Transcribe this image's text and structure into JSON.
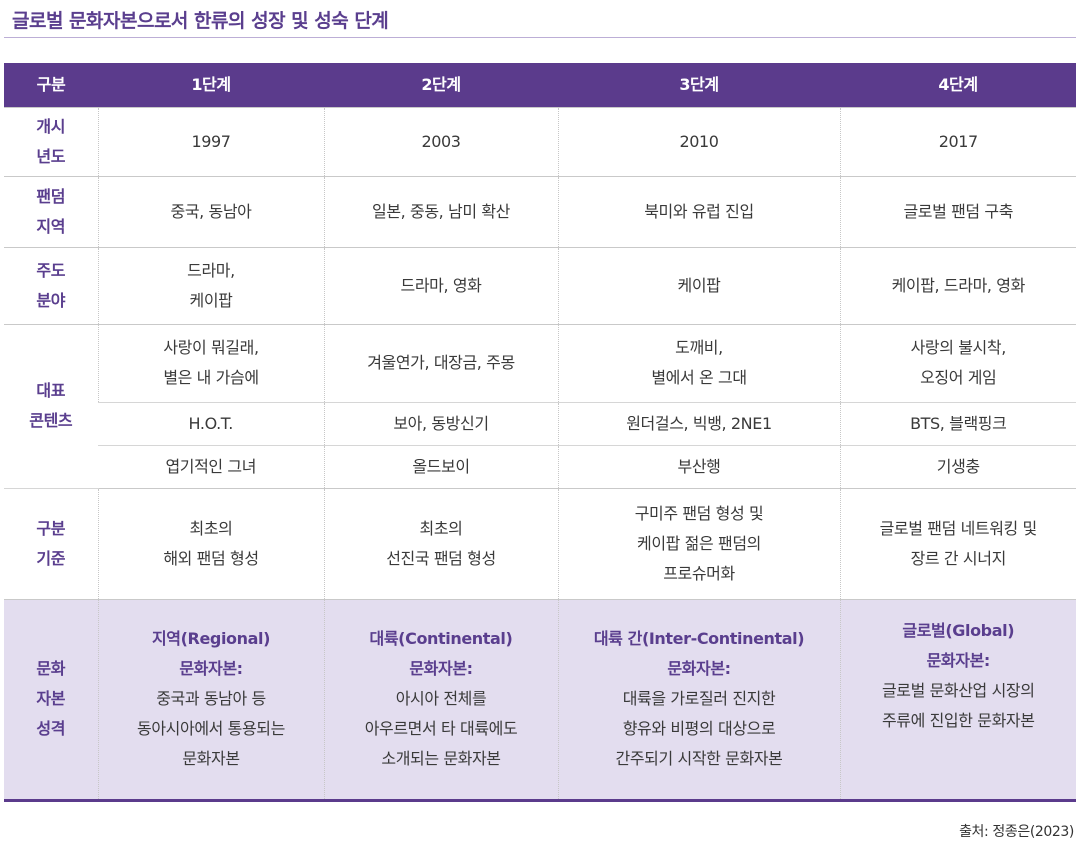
{
  "title": "글로벌 문화자본으로서 한류의 성장 및 성숙 단계",
  "header": [
    "구분",
    "1단계",
    "2단계",
    "3단계",
    "4단계"
  ],
  "rows": {
    "year": {
      "label": [
        "개시",
        "년도"
      ],
      "cells": [
        [
          "1997"
        ],
        [
          "2003"
        ],
        [
          "2010"
        ],
        [
          "2017"
        ]
      ]
    },
    "region": {
      "label": [
        "팬덤",
        "지역"
      ],
      "cells": [
        [
          "중국, 동남아"
        ],
        [
          "일본, 중동, 남미 확산"
        ],
        [
          "북미와 유럽 진입"
        ],
        [
          "글로벌 팬덤 구축"
        ]
      ]
    },
    "field": {
      "label": [
        "주도",
        "분야"
      ],
      "cells": [
        [
          "드라마,",
          "케이팝"
        ],
        [
          "드라마, 영화"
        ],
        [
          "케이팝"
        ],
        [
          "케이팝, 드라마, 영화"
        ]
      ]
    },
    "content": {
      "label": [
        "대표",
        "콘텐츠"
      ],
      "drama": [
        [
          "사랑이 뭐길래,",
          "별은 내 가슴에"
        ],
        [
          "겨울연가, 대장금, 주몽"
        ],
        [
          "도깨비,",
          "별에서 온 그대"
        ],
        [
          "사랑의 불시착,",
          "오징어 게임"
        ]
      ],
      "music": [
        [
          "H.O.T."
        ],
        [
          "보아, 동방신기"
        ],
        [
          "원더걸스, 빅뱅, 2NE1"
        ],
        [
          "BTS, 블랙핑크"
        ]
      ],
      "film": [
        [
          "엽기적인 그녀"
        ],
        [
          "올드보이"
        ],
        [
          "부산행"
        ],
        [
          "기생충"
        ]
      ]
    },
    "criteria": {
      "label": [
        "구분",
        "기준"
      ],
      "cells": [
        [
          "최초의",
          "해외 팬덤 형성"
        ],
        [
          "최초의",
          "선진국 팬덤 형성"
        ],
        [
          "구미주 팬덤 형성 및",
          "케이팝 젊은 팬덤의",
          "프로슈머화"
        ],
        [
          "글로벌 팬덤 네트워킹 및",
          "장르 간 시너지"
        ]
      ]
    },
    "character": {
      "label": [
        "문화",
        "자본",
        "성격"
      ],
      "cells": [
        {
          "head": [
            "지역(Regional)",
            "문화자본:"
          ],
          "body": [
            "중국과 동남아 등",
            "동아시아에서 통용되는",
            "문화자본"
          ]
        },
        {
          "head": [
            "대륙(Continental)",
            "문화자본:"
          ],
          "body": [
            "아시아 전체를",
            "아우르면서 타 대륙에도",
            "소개되는 문화자본"
          ]
        },
        {
          "head": [
            "대륙 간(Inter-Continental)",
            "문화자본:"
          ],
          "body": [
            "대륙을 가로질러 진지한",
            "향유와 비평의 대상으로",
            "간주되기 시작한 문화자본"
          ]
        },
        {
          "head": [
            "글로벌(Global)",
            "문화자본:"
          ],
          "body": [
            "글로벌 문화산업 시장의",
            "주류에 진입한 문화자본"
          ]
        }
      ]
    }
  },
  "source": "출처: 정종은(2023)"
}
